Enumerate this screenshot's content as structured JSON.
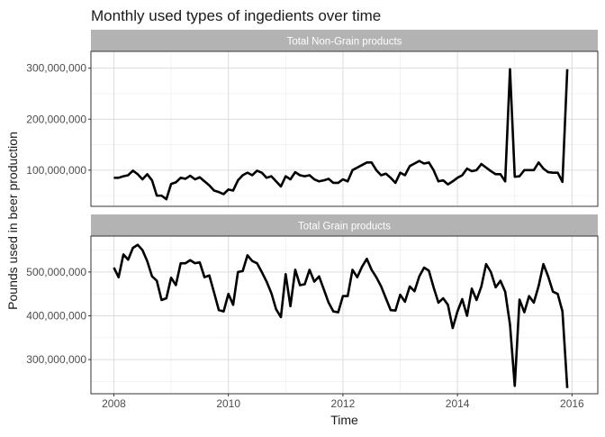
{
  "chart_data": {
    "type": "line",
    "title": "Monthly used types of ingedients over time",
    "xlabel": "Time",
    "ylabel": "Pounds used in beer production",
    "x_ticks": [
      "2008",
      "2010",
      "2012",
      "2014",
      "2016"
    ],
    "xlim": [
      2007.6,
      2016.45
    ],
    "grid": true,
    "colors": {
      "line": "#000000",
      "strip": "#b3b3b3",
      "grid": "#dcdcdc",
      "border": "#333333"
    },
    "facets": [
      {
        "strip_label": "Total Non-Grain products",
        "ylim": [
          29000000,
          333000000
        ],
        "y_ticks": [
          100000000,
          200000000,
          300000000
        ],
        "y_tick_labels": [
          "100,000,000",
          "200,000,000",
          "300,000,000"
        ],
        "x": [
          2008.0,
          2008.083,
          2008.167,
          2008.25,
          2008.333,
          2008.417,
          2008.5,
          2008.583,
          2008.667,
          2008.75,
          2008.833,
          2008.917,
          2009.0,
          2009.083,
          2009.167,
          2009.25,
          2009.333,
          2009.417,
          2009.5,
          2009.583,
          2009.667,
          2009.75,
          2009.833,
          2009.917,
          2010.0,
          2010.083,
          2010.167,
          2010.25,
          2010.333,
          2010.417,
          2010.5,
          2010.583,
          2010.667,
          2010.75,
          2010.833,
          2010.917,
          2011.0,
          2011.083,
          2011.167,
          2011.25,
          2011.333,
          2011.417,
          2011.5,
          2011.583,
          2011.667,
          2011.75,
          2011.833,
          2011.917,
          2012.0,
          2012.083,
          2012.167,
          2012.25,
          2012.333,
          2012.417,
          2012.5,
          2012.583,
          2012.667,
          2012.75,
          2012.833,
          2012.917,
          2013.0,
          2013.083,
          2013.167,
          2013.25,
          2013.333,
          2013.417,
          2013.5,
          2013.583,
          2013.667,
          2013.75,
          2013.833,
          2013.917,
          2014.0,
          2014.083,
          2014.167,
          2014.25,
          2014.333,
          2014.417,
          2014.5,
          2014.583,
          2014.667,
          2014.75,
          2014.833,
          2014.917,
          2015.0,
          2015.083,
          2015.167,
          2015.25,
          2015.333,
          2015.417,
          2015.5,
          2015.583,
          2015.667,
          2015.75,
          2015.833,
          2015.917
        ],
        "values": [
          85000000,
          85000000,
          88000000,
          90000000,
          99000000,
          92000000,
          82000000,
          92000000,
          80000000,
          50000000,
          50000000,
          43000000,
          73000000,
          76000000,
          85000000,
          83000000,
          89000000,
          82000000,
          86000000,
          78000000,
          70000000,
          60000000,
          57000000,
          53000000,
          62000000,
          60000000,
          80000000,
          90000000,
          95000000,
          90000000,
          99000000,
          95000000,
          85000000,
          88000000,
          78000000,
          68000000,
          88000000,
          82000000,
          96000000,
          90000000,
          88000000,
          90000000,
          82000000,
          78000000,
          80000000,
          83000000,
          75000000,
          75000000,
          82000000,
          78000000,
          100000000,
          105000000,
          110000000,
          115000000,
          115000000,
          100000000,
          90000000,
          93000000,
          85000000,
          75000000,
          95000000,
          90000000,
          108000000,
          113000000,
          118000000,
          113000000,
          115000000,
          100000000,
          78000000,
          80000000,
          72000000,
          78000000,
          85000000,
          90000000,
          103000000,
          98000000,
          100000000,
          112000000,
          105000000,
          98000000,
          92000000,
          92000000,
          78000000,
          298000000,
          87000000,
          88000000,
          100000000,
          100000000,
          100000000,
          115000000,
          103000000,
          96000000,
          95000000,
          95000000,
          77000000,
          298000000
        ]
      },
      {
        "strip_label": "Total Grain products",
        "ylim": [
          222000000,
          582000000
        ],
        "y_ticks": [
          300000000,
          400000000,
          500000000
        ],
        "y_tick_labels": [
          "300,000,000",
          "400,000,000",
          "500,000,000"
        ],
        "x": [
          2008.0,
          2008.083,
          2008.167,
          2008.25,
          2008.333,
          2008.417,
          2008.5,
          2008.583,
          2008.667,
          2008.75,
          2008.833,
          2008.917,
          2009.0,
          2009.083,
          2009.167,
          2009.25,
          2009.333,
          2009.417,
          2009.5,
          2009.583,
          2009.667,
          2009.75,
          2009.833,
          2009.917,
          2010.0,
          2010.083,
          2010.167,
          2010.25,
          2010.333,
          2010.417,
          2010.5,
          2010.583,
          2010.667,
          2010.75,
          2010.833,
          2010.917,
          2011.0,
          2011.083,
          2011.167,
          2011.25,
          2011.333,
          2011.417,
          2011.5,
          2011.583,
          2011.667,
          2011.75,
          2011.833,
          2011.917,
          2012.0,
          2012.083,
          2012.167,
          2012.25,
          2012.333,
          2012.417,
          2012.5,
          2012.583,
          2012.667,
          2012.75,
          2012.833,
          2012.917,
          2013.0,
          2013.083,
          2013.167,
          2013.25,
          2013.333,
          2013.417,
          2013.5,
          2013.583,
          2013.667,
          2013.75,
          2013.833,
          2013.917,
          2014.0,
          2014.083,
          2014.167,
          2014.25,
          2014.333,
          2014.417,
          2014.5,
          2014.583,
          2014.667,
          2014.75,
          2014.833,
          2014.917,
          2015.0,
          2015.083,
          2015.167,
          2015.25,
          2015.333,
          2015.417,
          2015.5,
          2015.583,
          2015.667,
          2015.75,
          2015.833,
          2015.917
        ],
        "values": [
          510000000,
          488000000,
          540000000,
          528000000,
          555000000,
          562000000,
          550000000,
          525000000,
          490000000,
          480000000,
          436000000,
          440000000,
          487000000,
          470000000,
          520000000,
          520000000,
          527000000,
          520000000,
          522000000,
          488000000,
          492000000,
          453000000,
          413000000,
          410000000,
          450000000,
          425000000,
          500000000,
          502000000,
          538000000,
          525000000,
          520000000,
          500000000,
          478000000,
          452000000,
          415000000,
          397000000,
          495000000,
          422000000,
          505000000,
          470000000,
          472000000,
          505000000,
          478000000,
          490000000,
          460000000,
          430000000,
          410000000,
          408000000,
          445000000,
          445000000,
          505000000,
          488000000,
          512000000,
          530000000,
          505000000,
          488000000,
          467000000,
          440000000,
          413000000,
          412000000,
          448000000,
          432000000,
          467000000,
          456000000,
          490000000,
          510000000,
          503000000,
          465000000,
          430000000,
          440000000,
          425000000,
          372000000,
          410000000,
          438000000,
          400000000,
          462000000,
          436000000,
          467000000,
          518000000,
          500000000,
          465000000,
          480000000,
          455000000,
          380000000,
          240000000,
          437000000,
          408000000,
          445000000,
          430000000,
          468000000,
          518000000,
          490000000,
          455000000,
          450000000,
          410000000,
          235000000
        ]
      }
    ]
  }
}
